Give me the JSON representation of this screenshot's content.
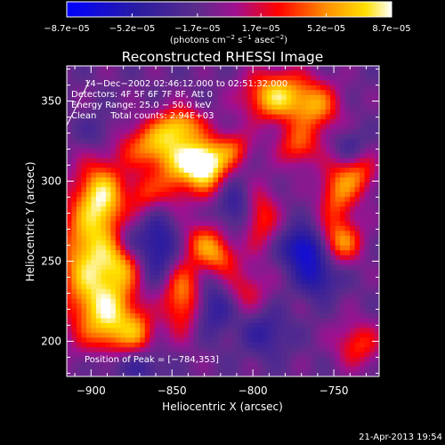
{
  "chart_data": {
    "type": "heatmap",
    "title": "Reconstructed RHESSI Image",
    "xlabel": "Heliocentric X (arcsec)",
    "ylabel": "Heliocentric Y (arcsec)",
    "xlim": [
      -915,
      -722
    ],
    "ylim": [
      178,
      372
    ],
    "x_ticks": [
      -900,
      -850,
      -800,
      -750
    ],
    "x_tick_labels": [
      "−900",
      "−850",
      "−800",
      "−750"
    ],
    "y_ticks": [
      200,
      250,
      300,
      350
    ],
    "y_tick_labels": [
      "200",
      "250",
      "300",
      "350"
    ],
    "colorbar": {
      "min": -8.7e-05,
      "max": 8.7e-05,
      "ticks": [
        -8.7e-05,
        -5.2e-05,
        -1.7e-05,
        1.7e-05,
        5.2e-05,
        8.7e-05
      ],
      "tick_labels": [
        "−8.7e−05",
        "−5.2e−05",
        "−1.7e−05",
        "1.7e−05",
        "5.2e−05",
        "8.7e−05"
      ],
      "unit_main": "(photons cm",
      "unit_exp1": "−2",
      "unit_mid": " s",
      "unit_exp2": "−1",
      "unit_tail": " asec",
      "unit_exp3": "−2",
      "unit_close": ")"
    },
    "annotations": {
      "time_range": "14−Dec−2002 02:46:12.000 to 02:51:32.000",
      "detectors": "Detectors: 4F 5F 6F 7F 8F, Att 0",
      "energy": "Energy Range: 25.0 − 50.0 keV",
      "clean": "Clean     Total counts: 2.94E+03",
      "peak": "Position of Peak = [−784,353]"
    },
    "blobs": [
      {
        "x": -900,
        "y": 250,
        "v": 8.7e-05,
        "sx": 14,
        "sy": 30
      },
      {
        "x": -893,
        "y": 292,
        "v": 6.5e-05,
        "sx": 10,
        "sy": 14
      },
      {
        "x": -880,
        "y": 250,
        "v": 5e-05,
        "sx": 8,
        "sy": 12
      },
      {
        "x": -886,
        "y": 212,
        "v": 6.5e-05,
        "sx": 12,
        "sy": 16
      },
      {
        "x": -870,
        "y": 205,
        "v": 4e-05,
        "sx": 7,
        "sy": 9
      },
      {
        "x": -860,
        "y": 322,
        "v": 7e-05,
        "sx": 15,
        "sy": 10
      },
      {
        "x": -845,
        "y": 335,
        "v": 6.5e-05,
        "sx": 10,
        "sy": 8
      },
      {
        "x": -828,
        "y": 308,
        "v": 7.5e-05,
        "sx": 9,
        "sy": 12
      },
      {
        "x": -835,
        "y": 312,
        "v": 6e-05,
        "sx": 9,
        "sy": 8
      },
      {
        "x": -812,
        "y": 320,
        "v": 4.5e-05,
        "sx": 8,
        "sy": 8
      },
      {
        "x": -785,
        "y": 353,
        "v": 8.5e-05,
        "sx": 14,
        "sy": 11
      },
      {
        "x": -760,
        "y": 346,
        "v": 5.5e-05,
        "sx": 10,
        "sy": 11
      },
      {
        "x": -772,
        "y": 322,
        "v": 5e-05,
        "sx": 9,
        "sy": 9
      },
      {
        "x": -748,
        "y": 292,
        "v": 5.5e-05,
        "sx": 8,
        "sy": 14
      },
      {
        "x": -735,
        "y": 305,
        "v": 5e-05,
        "sx": 8,
        "sy": 10
      },
      {
        "x": -796,
        "y": 278,
        "v": 5e-05,
        "sx": 8,
        "sy": 14
      },
      {
        "x": -745,
        "y": 262,
        "v": 6e-05,
        "sx": 9,
        "sy": 9
      },
      {
        "x": -830,
        "y": 262,
        "v": 5e-05,
        "sx": 9,
        "sy": 9
      },
      {
        "x": -820,
        "y": 252,
        "v": 4.5e-05,
        "sx": 8,
        "sy": 8
      },
      {
        "x": -843,
        "y": 228,
        "v": 7e-05,
        "sx": 9,
        "sy": 16
      },
      {
        "x": -850,
        "y": 300,
        "v": 4.5e-05,
        "sx": 9,
        "sy": 12
      },
      {
        "x": -868,
        "y": 292,
        "v": 3.5e-05,
        "sx": 7,
        "sy": 9
      },
      {
        "x": -805,
        "y": 232,
        "v": 3.5e-05,
        "sx": 10,
        "sy": 10
      },
      {
        "x": -735,
        "y": 198,
        "v": 4.5e-05,
        "sx": 10,
        "sy": 10
      },
      {
        "x": -878,
        "y": 262,
        "v": -4e-05,
        "sx": 7,
        "sy": 9
      },
      {
        "x": -896,
        "y": 330,
        "v": -2e-05,
        "sx": 8,
        "sy": 8
      },
      {
        "x": -858,
        "y": 258,
        "v": -4.5e-05,
        "sx": 9,
        "sy": 15
      },
      {
        "x": -826,
        "y": 222,
        "v": -4e-05,
        "sx": 10,
        "sy": 12
      },
      {
        "x": -810,
        "y": 285,
        "v": -3.5e-05,
        "sx": 9,
        "sy": 12
      },
      {
        "x": -769,
        "y": 258,
        "v": -6e-05,
        "sx": 9,
        "sy": 9
      },
      {
        "x": -760,
        "y": 240,
        "v": -4e-05,
        "sx": 9,
        "sy": 9
      },
      {
        "x": -870,
        "y": 185,
        "v": -3e-05,
        "sx": 10,
        "sy": 8
      },
      {
        "x": -792,
        "y": 205,
        "v": -3e-05,
        "sx": 10,
        "sy": 10
      },
      {
        "x": -740,
        "y": 320,
        "v": -3e-05,
        "sx": 7,
        "sy": 8
      },
      {
        "x": -892,
        "y": 188,
        "v": -2.5e-05,
        "sx": 8,
        "sy": 7
      }
    ],
    "baseline": -1.3e-05
  },
  "footer": {
    "timestamp": "21-Apr-2013 19:54"
  }
}
